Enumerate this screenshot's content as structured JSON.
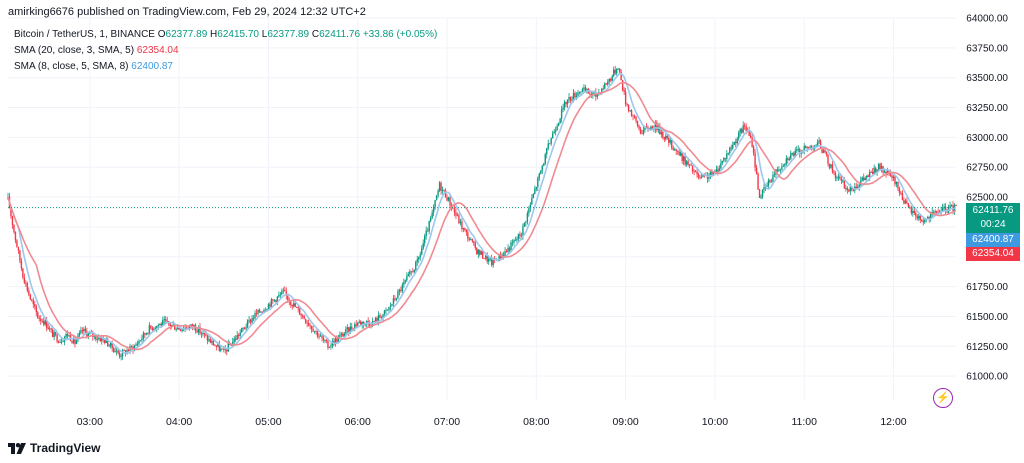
{
  "header": {
    "publisher": "amirking6676 published on TradingView.com, Feb 29, 2024 12:32 UTC+2"
  },
  "legend": {
    "symbol": "Bitcoin / TetherUS, 1, BINANCE",
    "o_label": "O",
    "o_value": "62377.89",
    "h_label": "H",
    "h_value": "62415.70",
    "l_label": "L",
    "l_value": "62377.89",
    "c_label": "C",
    "c_value": "62411.76",
    "change": "+33.86 (+0.05%)",
    "sma1_label": "SMA (20, close, 3, SMA, 5)",
    "sma1_value": "62354.04",
    "sma2_label": "SMA (8, close, 5, SMA, 8)",
    "sma2_value": "62400.87"
  },
  "price_tags": {
    "last_price": "62411.76",
    "countdown": "00:24",
    "sma_blue": "62400.87",
    "sma_red": "62354.04"
  },
  "footer": {
    "brand": "TradingView"
  },
  "colors": {
    "up": "#089981",
    "down": "#f23645",
    "wick": "#131722",
    "sma_fast": "#9cc7ee",
    "sma_slow": "#f08a93",
    "last_tag": "#089981",
    "blue_tag": "#3d9ae0",
    "red_tag": "#f23645"
  },
  "chart_data": {
    "type": "candlestick",
    "symbol": "Bitcoin / TetherUS",
    "interval": "1",
    "x_ticks": [
      "03:00",
      "04:00",
      "05:00",
      "06:00",
      "07:00",
      "08:00",
      "09:00",
      "10:00",
      "11:00",
      "12:00"
    ],
    "y_ticks": [
      61000,
      61250,
      61500,
      61750,
      62000,
      62250,
      62500,
      62750,
      63000,
      63250,
      63500,
      63750,
      64000
    ],
    "ylim": [
      60800,
      64000
    ],
    "xlim": [
      "02:05",
      "12:42"
    ],
    "last_price": 62411.76,
    "approx_close_path": [
      {
        "t": "02:05",
        "p": 62480
      },
      {
        "t": "02:10",
        "p": 62150
      },
      {
        "t": "02:15",
        "p": 61850
      },
      {
        "t": "02:20",
        "p": 61650
      },
      {
        "t": "02:25",
        "p": 61500
      },
      {
        "t": "02:30",
        "p": 61450
      },
      {
        "t": "02:35",
        "p": 61350
      },
      {
        "t": "02:40",
        "p": 61300
      },
      {
        "t": "02:45",
        "p": 61350
      },
      {
        "t": "02:50",
        "p": 61280
      },
      {
        "t": "02:55",
        "p": 61380
      },
      {
        "t": "03:00",
        "p": 61350
      },
      {
        "t": "03:10",
        "p": 61300
      },
      {
        "t": "03:20",
        "p": 61180
      },
      {
        "t": "03:30",
        "p": 61250
      },
      {
        "t": "03:40",
        "p": 61400
      },
      {
        "t": "03:50",
        "p": 61450
      },
      {
        "t": "04:00",
        "p": 61400
      },
      {
        "t": "04:10",
        "p": 61420
      },
      {
        "t": "04:20",
        "p": 61300
      },
      {
        "t": "04:30",
        "p": 61200
      },
      {
        "t": "04:40",
        "p": 61350
      },
      {
        "t": "04:50",
        "p": 61500
      },
      {
        "t": "05:00",
        "p": 61600
      },
      {
        "t": "05:10",
        "p": 61700
      },
      {
        "t": "05:20",
        "p": 61550
      },
      {
        "t": "05:30",
        "p": 61400
      },
      {
        "t": "05:40",
        "p": 61250
      },
      {
        "t": "05:50",
        "p": 61350
      },
      {
        "t": "06:00",
        "p": 61450
      },
      {
        "t": "06:10",
        "p": 61450
      },
      {
        "t": "06:20",
        "p": 61550
      },
      {
        "t": "06:30",
        "p": 61750
      },
      {
        "t": "06:40",
        "p": 61950
      },
      {
        "t": "06:50",
        "p": 62350
      },
      {
        "t": "06:55",
        "p": 62600
      },
      {
        "t": "07:00",
        "p": 62500
      },
      {
        "t": "07:10",
        "p": 62250
      },
      {
        "t": "07:20",
        "p": 62050
      },
      {
        "t": "07:30",
        "p": 61950
      },
      {
        "t": "07:40",
        "p": 62050
      },
      {
        "t": "07:50",
        "p": 62200
      },
      {
        "t": "08:00",
        "p": 62600
      },
      {
        "t": "08:10",
        "p": 63000
      },
      {
        "t": "08:20",
        "p": 63300
      },
      {
        "t": "08:30",
        "p": 63400
      },
      {
        "t": "08:40",
        "p": 63350
      },
      {
        "t": "08:50",
        "p": 63500
      },
      {
        "t": "08:55",
        "p": 63600
      },
      {
        "t": "09:00",
        "p": 63300
      },
      {
        "t": "09:10",
        "p": 63050
      },
      {
        "t": "09:20",
        "p": 63100
      },
      {
        "t": "09:30",
        "p": 62950
      },
      {
        "t": "09:40",
        "p": 62800
      },
      {
        "t": "09:50",
        "p": 62650
      },
      {
        "t": "10:00",
        "p": 62700
      },
      {
        "t": "10:10",
        "p": 62900
      },
      {
        "t": "10:20",
        "p": 63100
      },
      {
        "t": "10:25",
        "p": 62950
      },
      {
        "t": "10:30",
        "p": 62500
      },
      {
        "t": "10:40",
        "p": 62700
      },
      {
        "t": "10:50",
        "p": 62850
      },
      {
        "t": "11:00",
        "p": 62900
      },
      {
        "t": "11:10",
        "p": 62950
      },
      {
        "t": "11:20",
        "p": 62700
      },
      {
        "t": "11:30",
        "p": 62550
      },
      {
        "t": "11:40",
        "p": 62650
      },
      {
        "t": "11:50",
        "p": 62750
      },
      {
        "t": "12:00",
        "p": 62650
      },
      {
        "t": "12:10",
        "p": 62400
      },
      {
        "t": "12:20",
        "p": 62300
      },
      {
        "t": "12:30",
        "p": 62380
      },
      {
        "t": "12:40",
        "p": 62411
      }
    ]
  }
}
